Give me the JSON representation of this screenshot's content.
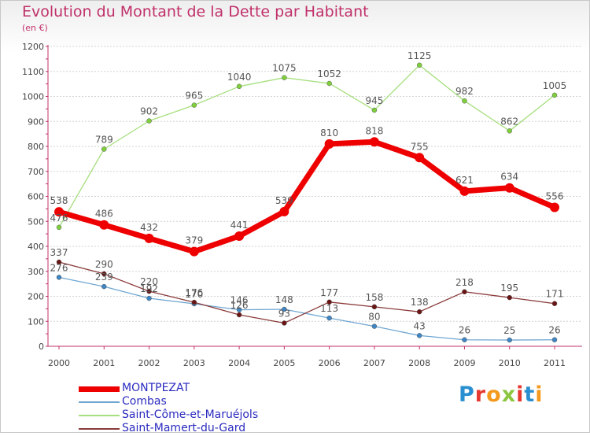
{
  "title": "Evolution du Montant de la Dette par Habitant",
  "subtitle": "(en €)",
  "logo": {
    "text": "Proxiti",
    "letters": [
      "P",
      "r",
      "o",
      "x",
      "i",
      "t",
      "i"
    ],
    "colors": [
      "#2a8fd0",
      "#e5382f",
      "#f39a1e",
      "#8cc63f",
      "#e5382f",
      "#2a8fd0",
      "#f39a1e"
    ]
  },
  "chart_data": {
    "type": "line",
    "title": "Evolution du Montant de la Dette par Habitant",
    "ylabel": "(en €)",
    "xlabel": "",
    "x": [
      "2000",
      "2001",
      "2002",
      "2003",
      "2004",
      "2005",
      "2006",
      "2007",
      "2008",
      "2009",
      "2010",
      "2011"
    ],
    "ylim": [
      0,
      1200
    ],
    "yticks": [
      "0",
      "100",
      "200",
      "300",
      "400",
      "500",
      "600",
      "700",
      "800",
      "900",
      "1000",
      "1100",
      "1200"
    ],
    "grid": "horizontal",
    "legend_position": "bottom-left",
    "series": [
      {
        "name": "MONTPEZAT",
        "color": "#ee0000",
        "point_color": "#ee0000",
        "line_width": 7,
        "point_radius": 6,
        "values": [
          538,
          486,
          432,
          379,
          441,
          539,
          810,
          818,
          755,
          621,
          634,
          556
        ],
        "labels": [
          "538",
          "486",
          "432",
          "379",
          "441",
          "539",
          "810",
          "818",
          "755",
          "621",
          "634",
          "556"
        ]
      },
      {
        "name": "Combas",
        "color": "#6ea6d2",
        "point_color": "#3f86c4",
        "line_width": 1.3,
        "point_radius": 3,
        "values": [
          276,
          239,
          192,
          170,
          146,
          148,
          113,
          80,
          43,
          26,
          25,
          26
        ],
        "labels": [
          "276",
          "239",
          "192",
          "170",
          "146",
          "148",
          "113",
          "80",
          "43",
          "26",
          "25",
          "26"
        ]
      },
      {
        "name": "Saint-Côme-et-Maruéjols",
        "color": "#a6df7d",
        "point_color": "#7fcf3b",
        "line_width": 1.3,
        "point_radius": 3,
        "values": [
          476,
          789,
          902,
          965,
          1040,
          1075,
          1052,
          945,
          1125,
          982,
          862,
          1005
        ],
        "labels": [
          "476",
          "789",
          "902",
          "965",
          "1040",
          "1075",
          "1052",
          "945",
          "1125",
          "982",
          "862",
          "1005"
        ]
      },
      {
        "name": "Saint-Mamert-du-Gard",
        "color": "#8a3a3a",
        "point_color": "#6a1414",
        "line_width": 1.3,
        "point_radius": 3,
        "values": [
          337,
          290,
          220,
          176,
          126,
          93,
          177,
          158,
          138,
          218,
          195,
          171
        ],
        "labels": [
          "337",
          "290",
          "220",
          "176",
          "126",
          "93",
          "177",
          "158",
          "138",
          "218",
          "195",
          "171"
        ]
      }
    ]
  }
}
